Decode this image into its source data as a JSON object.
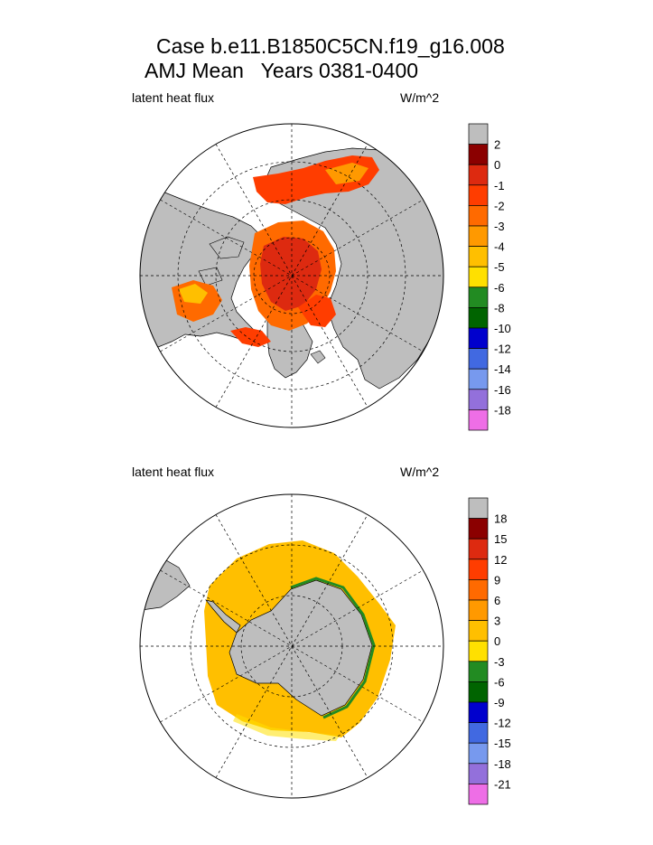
{
  "title_line1": "Case b.e11.B1850C5CN.f19_g16.008",
  "title_line2": "AMJ Mean   Years 0381-0400",
  "chart_data": [
    {
      "type": "heatmap",
      "projection": "polar-stereographic-north",
      "variable_label": "latent heat flux",
      "units_label": "W/m^2",
      "colorbar": {
        "levels": [
          "2",
          "0",
          "-1",
          "-2",
          "-3",
          "-4",
          "-5",
          "-6",
          "-8",
          "-10",
          "-12",
          "-14",
          "-16",
          "-18"
        ],
        "colors": [
          "#bebebe",
          "#8b0000",
          "#dd2a10",
          "#ff3d00",
          "#ff6a00",
          "#ff9900",
          "#ffbf00",
          "#ffe000",
          "#228b22",
          "#006400",
          "#0000cd",
          "#4169e1",
          "#7799ee",
          "#9370db",
          "#ee6ee6"
        ]
      }
    },
    {
      "type": "heatmap",
      "projection": "polar-stereographic-south",
      "variable_label": "latent heat flux",
      "units_label": "W/m^2",
      "colorbar": {
        "levels": [
          "18",
          "15",
          "12",
          "9",
          "6",
          "3",
          "0",
          "-3",
          "-6",
          "-9",
          "-12",
          "-15",
          "-18",
          "-21"
        ],
        "colors": [
          "#bebebe",
          "#8b0000",
          "#dd2a10",
          "#ff3d00",
          "#ff6a00",
          "#ff9900",
          "#ffbf00",
          "#ffe000",
          "#228b22",
          "#006400",
          "#0000cd",
          "#4169e1",
          "#7799ee",
          "#9370db",
          "#ee6ee6"
        ]
      }
    }
  ]
}
